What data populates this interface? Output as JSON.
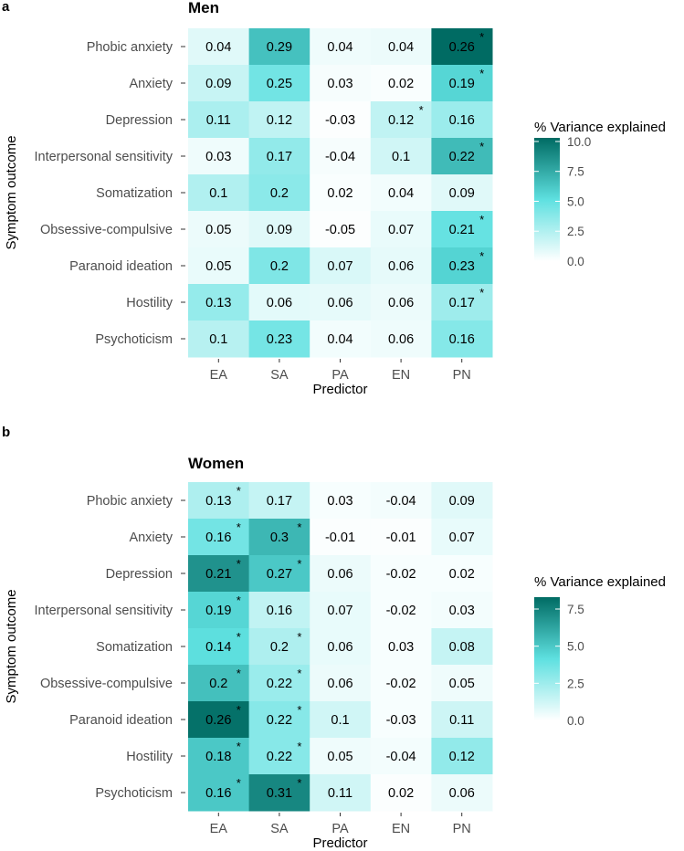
{
  "chart_data": [
    {
      "type": "heatmap",
      "panel_label": "a",
      "title": "Men",
      "xlabel": "Predictor",
      "ylabel": "Symptom outcome",
      "x_categories": [
        "EA",
        "SA",
        "PA",
        "EN",
        "PN"
      ],
      "y_categories": [
        "Phobic anxiety",
        "Anxiety",
        "Depression",
        "Interpersonal sensitivity",
        "Somatization",
        "Obsessive-compulsive",
        "Paranoid ideation",
        "Hostility",
        "Psychoticism"
      ],
      "cell_labels": [
        [
          "0.04",
          "0.29",
          "0.04",
          "0.04",
          "0.26"
        ],
        [
          "0.09",
          "0.25",
          "0.03",
          "0.02",
          "0.19"
        ],
        [
          "0.11",
          "0.12",
          "-0.03",
          "0.12",
          "0.16"
        ],
        [
          "0.03",
          "0.17",
          "-0.04",
          "0.1",
          "0.22"
        ],
        [
          "0.1",
          "0.2",
          "0.02",
          "0.04",
          "0.09"
        ],
        [
          "0.05",
          "0.09",
          "-0.05",
          "0.07",
          "0.21"
        ],
        [
          "0.05",
          "0.2",
          "0.07",
          "0.06",
          "0.23"
        ],
        [
          "0.13",
          "0.06",
          "0.06",
          "0.06",
          "0.17"
        ],
        [
          "0.1",
          "0.23",
          "0.04",
          "0.06",
          "0.16"
        ]
      ],
      "variance_explained": [
        [
          1.0,
          6.5,
          0.5,
          0.6,
          10.3
        ],
        [
          1.8,
          4.5,
          0.3,
          0.2,
          5.6
        ],
        [
          2.7,
          2.0,
          0.1,
          2.0,
          3.2
        ],
        [
          0.5,
          3.5,
          0.3,
          1.5,
          6.8
        ],
        [
          2.5,
          3.7,
          0.2,
          0.4,
          1.0
        ],
        [
          0.6,
          1.0,
          0.1,
          0.7,
          4.9
        ],
        [
          0.7,
          4.1,
          1.2,
          0.8,
          5.7
        ],
        [
          3.4,
          0.9,
          0.8,
          0.6,
          3.1
        ],
        [
          2.3,
          4.4,
          0.4,
          0.5,
          3.9
        ]
      ],
      "significant": [
        [
          false,
          false,
          false,
          false,
          true
        ],
        [
          false,
          false,
          false,
          false,
          true
        ],
        [
          false,
          false,
          false,
          true,
          false
        ],
        [
          false,
          false,
          false,
          false,
          true
        ],
        [
          false,
          false,
          false,
          false,
          false
        ],
        [
          false,
          false,
          false,
          false,
          true
        ],
        [
          false,
          false,
          false,
          false,
          true
        ],
        [
          false,
          false,
          false,
          false,
          true
        ],
        [
          false,
          false,
          false,
          false,
          false
        ]
      ],
      "legend": {
        "title": "% Variance explained",
        "ticks": [
          10.0,
          7.5,
          5.0,
          2.5,
          0.0
        ],
        "tick_labels": [
          "10.0",
          "7.5",
          "5.0",
          "2.5",
          "0.0"
        ],
        "range": [
          0,
          10.3
        ]
      },
      "star_symbol": "*"
    },
    {
      "type": "heatmap",
      "panel_label": "b",
      "title": "Women",
      "xlabel": "Predictor",
      "ylabel": "Symptom outcome",
      "x_categories": [
        "EA",
        "SA",
        "PA",
        "EN",
        "PN"
      ],
      "y_categories": [
        "Phobic anxiety",
        "Anxiety",
        "Depression",
        "Interpersonal sensitivity",
        "Somatization",
        "Obsessive-compulsive",
        "Paranoid ideation",
        "Hostility",
        "Psychoticism"
      ],
      "cell_labels": [
        [
          "0.13",
          "0.17",
          "0.03",
          "-0.04",
          "0.09"
        ],
        [
          "0.16",
          "0.3",
          "-0.01",
          "-0.01",
          "0.07"
        ],
        [
          "0.21",
          "0.27",
          "0.06",
          "-0.02",
          "0.02"
        ],
        [
          "0.19",
          "0.16",
          "0.07",
          "-0.02",
          "0.03"
        ],
        [
          "0.14",
          "0.2",
          "0.06",
          "0.03",
          "0.08"
        ],
        [
          "0.2",
          "0.22",
          "0.06",
          "-0.02",
          "0.05"
        ],
        [
          "0.26",
          "0.22",
          "0.1",
          "-0.03",
          "0.11"
        ],
        [
          "0.18",
          "0.22",
          "0.05",
          "-0.04",
          "0.12"
        ],
        [
          "0.16",
          "0.31",
          "0.11",
          "0.02",
          "0.06"
        ]
      ],
      "variance_explained": [
        [
          2.1,
          1.5,
          0.2,
          0.3,
          0.8
        ],
        [
          3.6,
          5.6,
          0.1,
          0.1,
          0.6
        ],
        [
          6.9,
          5.0,
          0.5,
          0.2,
          0.2
        ],
        [
          4.5,
          1.6,
          0.6,
          0.2,
          0.3
        ],
        [
          4.2,
          2.1,
          0.6,
          0.2,
          1.5
        ],
        [
          5.3,
          2.6,
          0.5,
          0.2,
          0.4
        ],
        [
          8.1,
          3.1,
          1.2,
          0.2,
          1.3
        ],
        [
          5.0,
          3.1,
          0.4,
          0.3,
          2.8
        ],
        [
          5.0,
          7.3,
          1.2,
          0.1,
          0.5
        ]
      ],
      "significant": [
        [
          true,
          false,
          false,
          false,
          false
        ],
        [
          true,
          true,
          false,
          false,
          false
        ],
        [
          true,
          true,
          false,
          false,
          false
        ],
        [
          true,
          false,
          false,
          false,
          false
        ],
        [
          true,
          true,
          false,
          false,
          false
        ],
        [
          true,
          true,
          false,
          false,
          false
        ],
        [
          true,
          true,
          false,
          false,
          false
        ],
        [
          true,
          true,
          false,
          false,
          false
        ],
        [
          true,
          true,
          false,
          false,
          false
        ]
      ],
      "legend": {
        "title": "% Variance explained",
        "ticks": [
          7.5,
          5.0,
          2.5,
          0.0
        ],
        "tick_labels": [
          "7.5",
          "5.0",
          "2.5",
          "0.0"
        ],
        "range": [
          0,
          8.3
        ]
      },
      "star_symbol": "*"
    }
  ],
  "colors": {
    "low": "#ffffff",
    "mid": "#5ee0e0",
    "high": "#006b63",
    "text": "#000000",
    "axis_text": "#4d4d4d",
    "tick": "#333333"
  }
}
